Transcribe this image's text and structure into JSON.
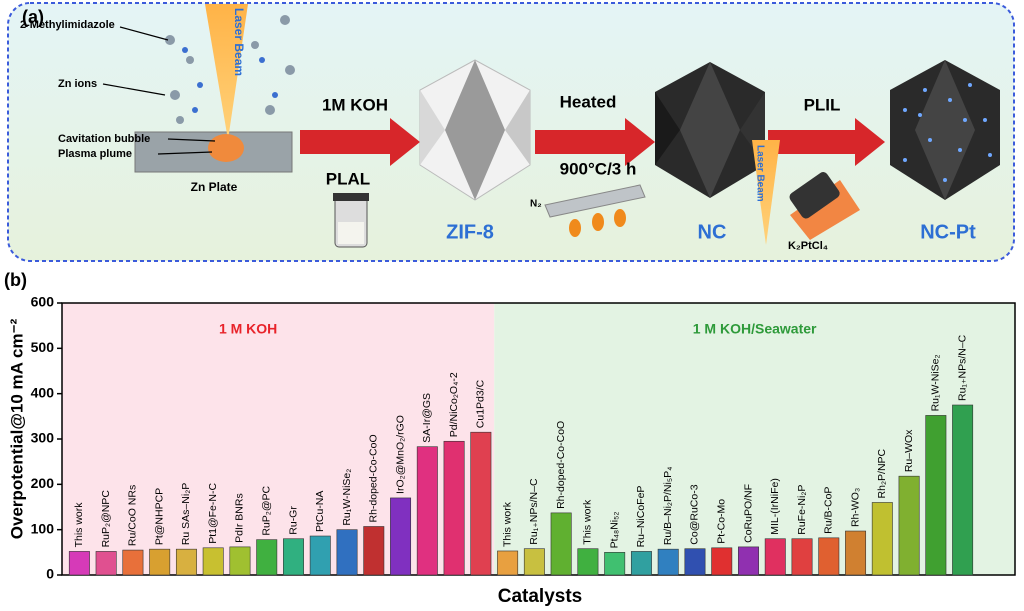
{
  "schematic": {
    "panel_label": "(a)",
    "laser_beam_1": "Laser Beam",
    "methylimidazole": "2-Methylimidazole",
    "zn_ions": "Zn ions",
    "cavitation": "Cavitation bubble",
    "plasma": "Plasma plume",
    "zn_plate": "Zn Plate",
    "step1_top": "1M KOH",
    "step1_bottom": "PLAL",
    "product1": "ZIF-8",
    "step2_top": "Heated",
    "step2_bottom": "900°C/3 h",
    "gas": "N₂",
    "product2": "NC",
    "step3_top": "PLIL",
    "laser_beam_2": "Laser Beam",
    "precursor": "K₂PtCl₄",
    "product3": "NC-Pt"
  },
  "chart_data": {
    "type": "bar",
    "panel_label": "(b)",
    "ylabel": "Overpotential@10 mA cm⁻²",
    "xlabel": "Catalysts",
    "ylim": [
      0,
      600
    ],
    "yticks": [
      0,
      100,
      200,
      300,
      400,
      500,
      600
    ],
    "groups": [
      {
        "name": "1 M KOH",
        "label_color": "#e8232a",
        "background": "#fde3ea",
        "categories": [
          "This work",
          "RuP₂@NPC",
          "Ru/CoO NRs",
          "Pt@NHPCP",
          "Ru SAs–Ni₂P",
          "Pt1@Fe-N-C",
          "PdIr BNRs",
          "RuP₂@PC",
          "Ru-Gr",
          "PtCu-NA",
          "Ru₁W-NiSe₂",
          "Rh-doped-Co-CoO",
          "IrO₂@MnO₂/rGO",
          "SA-Ir@GS",
          "Pd/NiCo₂O₄-2",
          "Cu1Pd3/C"
        ],
        "values": [
          52,
          52,
          55,
          57,
          57,
          60,
          62,
          78,
          80,
          86,
          100,
          107,
          170,
          283,
          295,
          315
        ],
        "colors": [
          "#d63ab8",
          "#e05090",
          "#e8703a",
          "#d8a030",
          "#d8b040",
          "#c8c030",
          "#a0c030",
          "#40b040",
          "#30b080",
          "#30a0b0",
          "#3070c0",
          "#c03030",
          "#8030c0",
          "#e03080",
          "#e03070",
          "#e04050"
        ]
      },
      {
        "name": "1 M KOH/Seawater",
        "label_color": "#2e9a3a",
        "background": "#e3f3e3",
        "categories": [
          "This work",
          "Ru₁₊NPs/N–C",
          "Rh-doped-Co-CoO",
          "This work",
          "Pt₄₈Ni₅₂",
          "Ru–NiCoFeP",
          "Ru/B–Ni₂P/Ni₅P₄",
          "Co@RuCo-3",
          "Pt-Co-Mo",
          "CoRuPO/NF",
          "MIL-(IrNiFe)",
          "RuFe-Ni₂P",
          "Ru/B-CoP",
          "Rh-WO₃",
          "Rh₂P/NPC",
          "Ru–WOx",
          "Ru₁W-NiSe₂",
          "Ru₁₊NPs/N–C"
        ],
        "values": [
          53,
          58,
          137,
          58,
          50,
          52,
          57,
          58,
          60,
          62,
          80,
          80,
          82,
          97,
          160,
          218,
          352,
          375
        ],
        "colors": [
          "#e8a040",
          "#c8c040",
          "#60b030",
          "#40b040",
          "#40c070",
          "#30a0a0",
          "#3080c0",
          "#3050b0",
          "#e03030",
          "#9030b0",
          "#e03060",
          "#e04040",
          "#e06030",
          "#d08030",
          "#c0c030",
          "#80b030",
          "#40a030",
          "#30a050"
        ]
      }
    ]
  }
}
